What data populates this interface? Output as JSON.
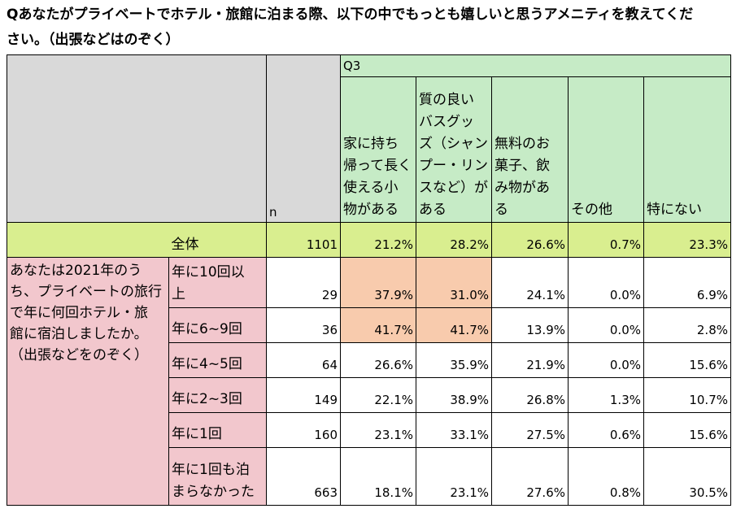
{
  "title_lines": [
    "Qあなたがプライベートでホテル・旅館に泊まる際、以下の中でもっとも嬉しいと思うアメニティを教えてくだ",
    "さい。（出張などはのぞく）"
  ],
  "table": {
    "question_label": "Q3",
    "n_label": "n",
    "options": [
      {
        "lines": [
          "家に持ち",
          "帰って長く",
          "使える小",
          "物がある"
        ]
      },
      {
        "lines": [
          "質の良い",
          "バスグッ",
          "ズ（シャン",
          "プー・リン",
          "スなど）が",
          "ある"
        ]
      },
      {
        "lines": [
          "無料のお",
          "菓子、飲",
          "み物があ",
          "る"
        ]
      },
      {
        "lines": [
          "その他"
        ]
      },
      {
        "lines": [
          "特にない"
        ]
      }
    ],
    "total": {
      "label": "全体",
      "n": "1101",
      "values": [
        "21.2%",
        "28.2%",
        "26.6%",
        "0.7%",
        "23.3%"
      ]
    },
    "group_label_lines": [
      "あなたは2021年のう",
      "ち、プライベートの旅行",
      "で年に何回ホテル・旅",
      "館に宿泊しましたか。",
      "（出張などをのぞく）"
    ],
    "rows": [
      {
        "label_lines": [
          "年に10回以",
          "上"
        ],
        "n": "29",
        "values": [
          "37.9%",
          "31.0%",
          "24.1%",
          "0.0%",
          "6.9%"
        ],
        "highlight": [
          0,
          1
        ]
      },
      {
        "label_lines": [
          "年に6~9回"
        ],
        "n": "36",
        "values": [
          "41.7%",
          "41.7%",
          "13.9%",
          "0.0%",
          "2.8%"
        ],
        "highlight": [
          0,
          1
        ]
      },
      {
        "label_lines": [
          "年に4~5回"
        ],
        "n": "64",
        "values": [
          "26.6%",
          "35.9%",
          "21.9%",
          "0.0%",
          "15.6%"
        ],
        "highlight": []
      },
      {
        "label_lines": [
          "年に2~3回"
        ],
        "n": "149",
        "values": [
          "22.1%",
          "38.9%",
          "26.8%",
          "1.3%",
          "10.7%"
        ],
        "highlight": []
      },
      {
        "label_lines": [
          "年に1回"
        ],
        "n": "160",
        "values": [
          "23.1%",
          "33.1%",
          "27.5%",
          "0.6%",
          "15.6%"
        ],
        "highlight": []
      },
      {
        "label_lines": [
          "年に1回も泊",
          "まらなかった"
        ],
        "n": "663",
        "values": [
          "18.1%",
          "23.1%",
          "27.6%",
          "0.8%",
          "30.5%"
        ],
        "highlight": []
      }
    ]
  },
  "colors": {
    "header_gray": "#d9d9d9",
    "header_green": "#c6ebc6",
    "total_row": "#d9ee8f",
    "segment_pink": "#f2c7cd",
    "highlight": "#f8cbad"
  }
}
